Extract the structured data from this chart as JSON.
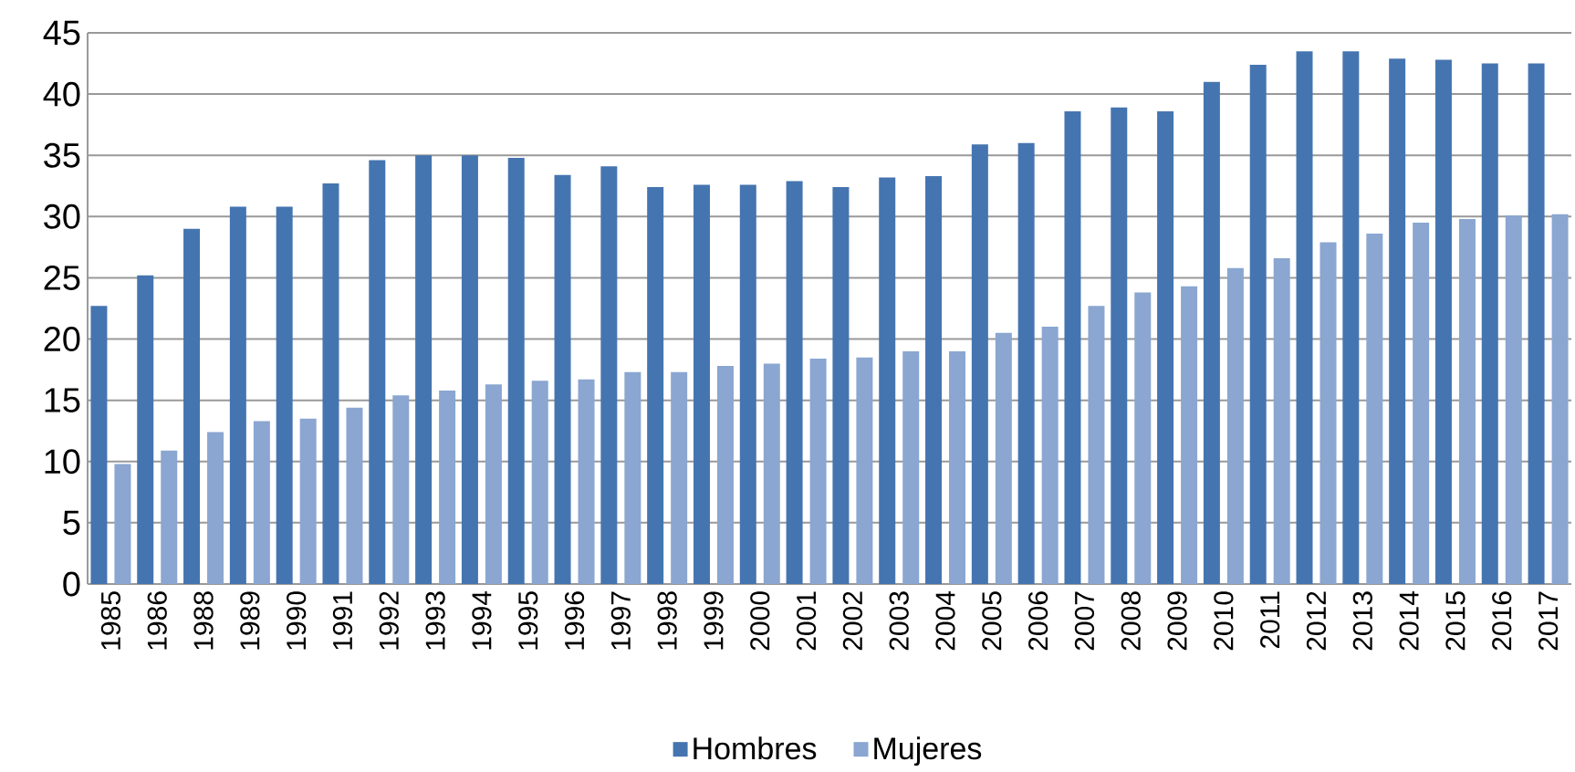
{
  "chart_data": {
    "type": "bar",
    "categories": [
      "1985",
      "1986",
      "1988",
      "1989",
      "1990",
      "1991",
      "1992",
      "1993",
      "1994",
      "1995",
      "1996",
      "1997",
      "1998",
      "1999",
      "2000",
      "2001",
      "2002",
      "2003",
      "2004",
      "2005",
      "2006",
      "2007",
      "2008",
      "2009",
      "2010",
      "2011",
      "2012",
      "2013",
      "2014",
      "2015",
      "2016",
      "2017"
    ],
    "series": [
      {
        "name": "Hombres",
        "color": "#4575b0",
        "values": [
          22.7,
          25.2,
          29.0,
          30.8,
          30.8,
          32.7,
          34.6,
          35.0,
          35.0,
          34.8,
          33.4,
          34.1,
          32.4,
          32.6,
          32.6,
          32.9,
          32.4,
          33.2,
          33.3,
          35.9,
          36.0,
          38.6,
          38.9,
          38.6,
          41.0,
          42.4,
          43.5,
          43.5,
          42.9,
          42.8,
          42.5,
          42.5
        ]
      },
      {
        "name": "Mujeres",
        "color": "#8aa6d1",
        "values": [
          9.8,
          10.9,
          12.4,
          13.3,
          13.5,
          14.4,
          15.4,
          15.8,
          16.3,
          16.6,
          16.7,
          17.3,
          17.3,
          17.8,
          18.0,
          18.4,
          18.5,
          19.0,
          19.0,
          20.5,
          21.0,
          22.7,
          23.8,
          24.3,
          25.8,
          26.6,
          27.9,
          28.6,
          29.5,
          29.8,
          30.1,
          30.2
        ]
      }
    ],
    "ylim": [
      0,
      45
    ],
    "yticks": [
      0,
      5,
      10,
      15,
      20,
      25,
      30,
      35,
      40,
      45
    ],
    "grid": "y",
    "legend": "bottom"
  }
}
